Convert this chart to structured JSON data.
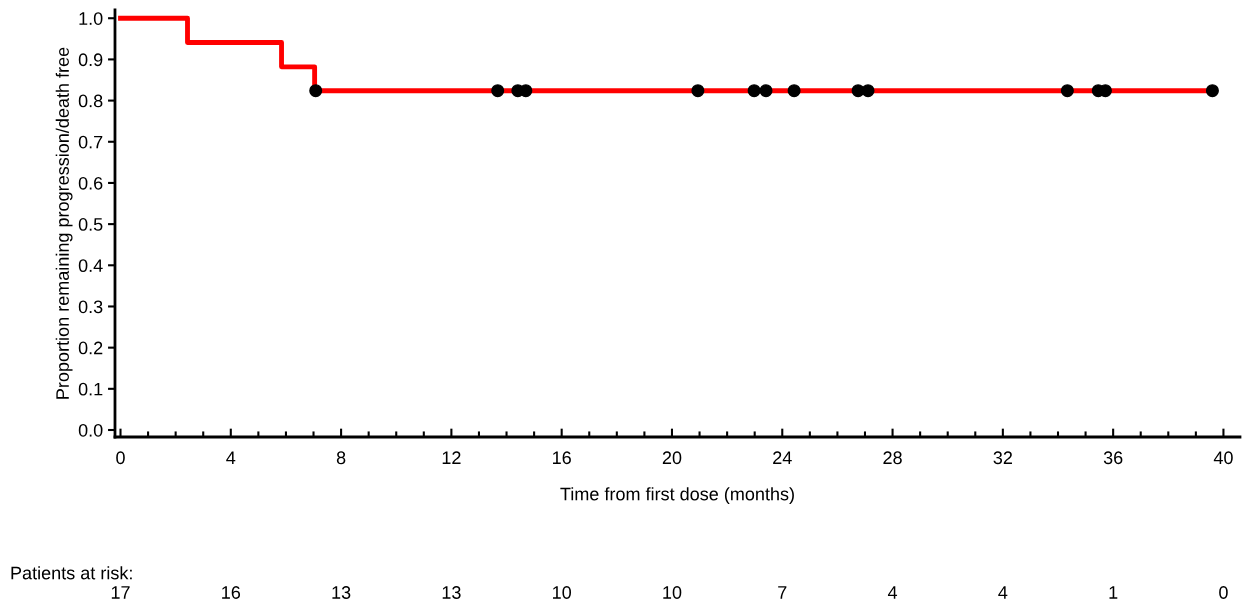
{
  "chart_data": {
    "type": "step",
    "xlabel": "Time from first dose (months)",
    "ylabel": "Proportion remaining progression/death free",
    "series": [
      {
        "color": "#ff0000",
        "x": [
          0,
          2.43,
          5.84,
          7.04,
          39.6
        ],
        "values": [
          1.0,
          0.941,
          0.882,
          0.824,
          0.824
        ]
      },
      {
        "type": "scatter",
        "color": "#000000",
        "marker": "circle",
        "x": [
          7.08,
          13.68,
          14.41,
          14.7,
          20.94,
          22.98,
          23.41,
          24.43,
          26.75,
          27.11,
          34.34,
          35.46,
          35.72,
          39.6
        ],
        "values": [
          0.824,
          0.824,
          0.824,
          0.824,
          0.824,
          0.824,
          0.824,
          0.824,
          0.824,
          0.824,
          0.824,
          0.824,
          0.824,
          0.824
        ]
      }
    ],
    "xlim": [
      -0.2,
      40.6
    ],
    "ylim": [
      -0.017,
      1.02
    ],
    "xticks": [
      0,
      {
        "value": 1,
        "label": null
      },
      {
        "value": 2,
        "label": null
      },
      {
        "value": 3,
        "label": null
      },
      4,
      {
        "value": 5,
        "label": null
      },
      {
        "value": 6,
        "label": null
      },
      {
        "value": 7,
        "label": null
      },
      8,
      {
        "value": 9,
        "label": null
      },
      {
        "value": 10,
        "label": null
      },
      {
        "value": 11,
        "label": null
      },
      12,
      {
        "value": 13,
        "label": null
      },
      {
        "value": 14,
        "label": null
      },
      {
        "value": 15,
        "label": null
      },
      16,
      {
        "value": 17,
        "label": null
      },
      {
        "value": 18,
        "label": null
      },
      {
        "value": 19,
        "label": null
      },
      20,
      {
        "value": 21,
        "label": null
      },
      {
        "value": 22,
        "label": null
      },
      {
        "value": 23,
        "label": null
      },
      24,
      {
        "value": 25,
        "label": null
      },
      {
        "value": 26,
        "label": null
      },
      {
        "value": 27,
        "label": null
      },
      28,
      {
        "value": 29,
        "label": null
      },
      {
        "value": 30,
        "label": null
      },
      {
        "value": 31,
        "label": null
      },
      32,
      {
        "value": 33,
        "label": null
      },
      {
        "value": 34,
        "label": null
      },
      {
        "value": 35,
        "label": null
      },
      36,
      {
        "value": 37,
        "label": null
      },
      {
        "value": 38,
        "label": null
      },
      {
        "value": 39,
        "label": null
      },
      40
    ],
    "yticks": [
      {
        "value": 0,
        "label": "0.0"
      },
      0.1,
      0.2,
      0.3,
      0.4,
      0.5,
      0.6,
      0.7,
      0.8,
      0.9,
      {
        "value": 1,
        "label": "1.0"
      }
    ],
    "annotations": [
      "Patients at risk:",
      "17",
      "16",
      "13",
      "13",
      "10",
      "10",
      "7",
      "4",
      "4",
      "1",
      "0"
    ],
    "grid": false
  }
}
